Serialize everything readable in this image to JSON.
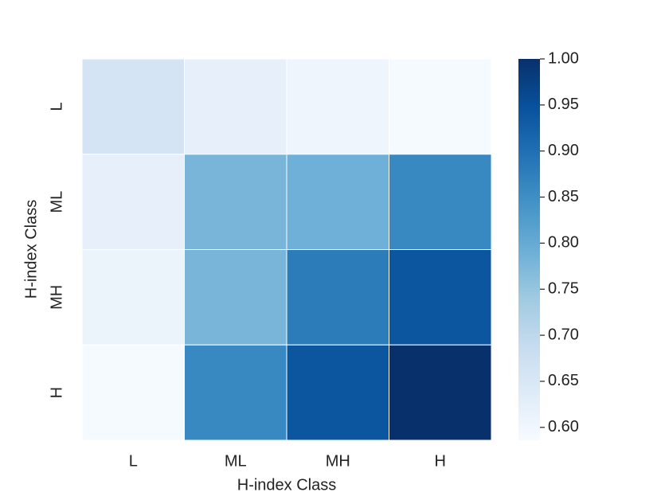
{
  "chart_data": {
    "type": "heatmap",
    "xlabel": "H-index Class",
    "ylabel": "H-index Class",
    "categories": [
      "L",
      "ML",
      "MH",
      "H"
    ],
    "y_categories": [
      "L",
      "ML",
      "MH",
      "H"
    ],
    "values": [
      [
        0.66,
        0.62,
        0.605,
        0.59
      ],
      [
        0.62,
        0.78,
        0.79,
        0.86
      ],
      [
        0.61,
        0.78,
        0.88,
        0.94
      ],
      [
        0.59,
        0.86,
        0.94,
        1.0
      ]
    ],
    "colorscale": [
      "#f7fbff",
      "#deebf7",
      "#c6dbef",
      "#9ecae1",
      "#6baed6",
      "#4292c6",
      "#2171b5",
      "#08519c",
      "#08306b"
    ],
    "zlim": [
      0.586,
      1.0
    ],
    "zticks": [
      {
        "value": 0.6,
        "label": "0.60"
      },
      {
        "value": 0.65,
        "label": "0.65"
      },
      {
        "value": 0.7,
        "label": "0.70"
      },
      {
        "value": 0.75,
        "label": "0.75"
      },
      {
        "value": 0.8,
        "label": "0.80"
      },
      {
        "value": 0.85,
        "label": "0.85"
      },
      {
        "value": 0.9,
        "label": "0.90"
      },
      {
        "value": 0.95,
        "label": "0.95"
      },
      {
        "value": 1.0,
        "label": "1.00"
      }
    ]
  }
}
